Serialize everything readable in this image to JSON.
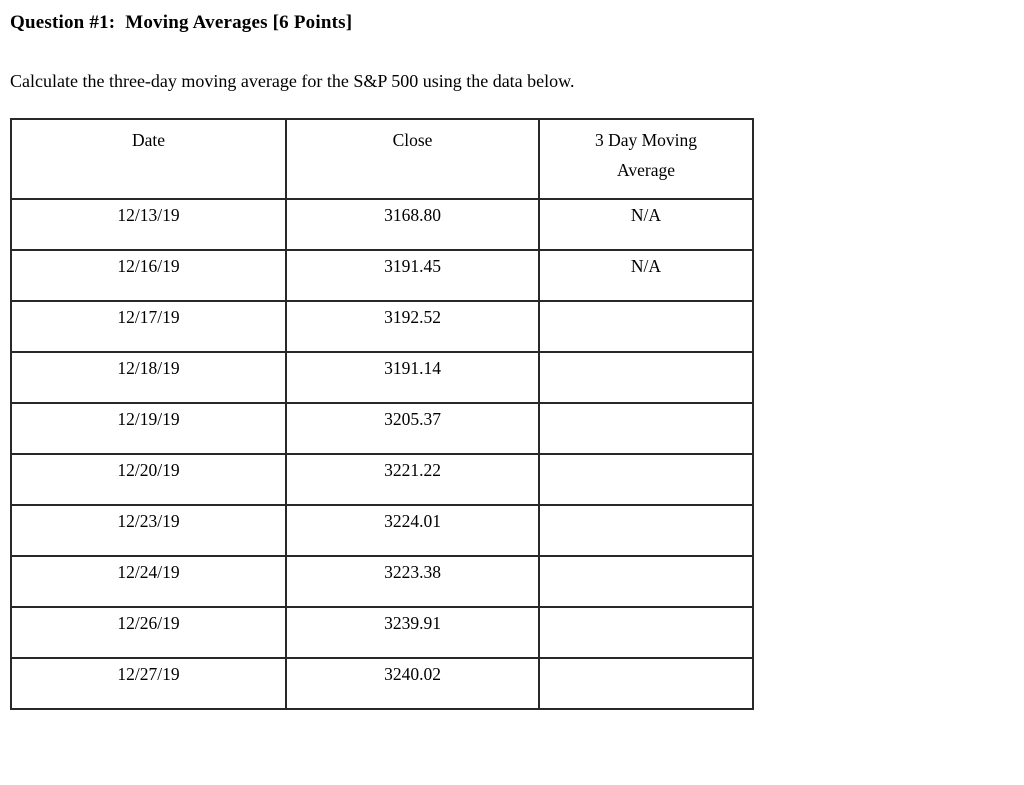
{
  "colors": {
    "background": "#ffffff",
    "text": "#000000",
    "table_border": "#282828"
  },
  "question": {
    "title": "Question #1:  Moving Averages [6 Points]",
    "instruction": "Calculate the three-day moving average for the S&P 500 using the data below."
  },
  "table": {
    "headers": {
      "date": "Date",
      "close": "Close",
      "moving_average": "3 Day Moving Average"
    },
    "rows": [
      {
        "date": "12/13/19",
        "close": "3168.80",
        "moving_average": "N/A"
      },
      {
        "date": "12/16/19",
        "close": "3191.45",
        "moving_average": "N/A"
      },
      {
        "date": "12/17/19",
        "close": "3192.52",
        "moving_average": ""
      },
      {
        "date": "12/18/19",
        "close": "3191.14",
        "moving_average": ""
      },
      {
        "date": "12/19/19",
        "close": "3205.37",
        "moving_average": ""
      },
      {
        "date": "12/20/19",
        "close": "3221.22",
        "moving_average": ""
      },
      {
        "date": "12/23/19",
        "close": "3224.01",
        "moving_average": ""
      },
      {
        "date": "12/24/19",
        "close": "3223.38",
        "moving_average": ""
      },
      {
        "date": "12/26/19",
        "close": "3239.91",
        "moving_average": ""
      },
      {
        "date": "12/27/19",
        "close": "3240.02",
        "moving_average": ""
      }
    ]
  }
}
